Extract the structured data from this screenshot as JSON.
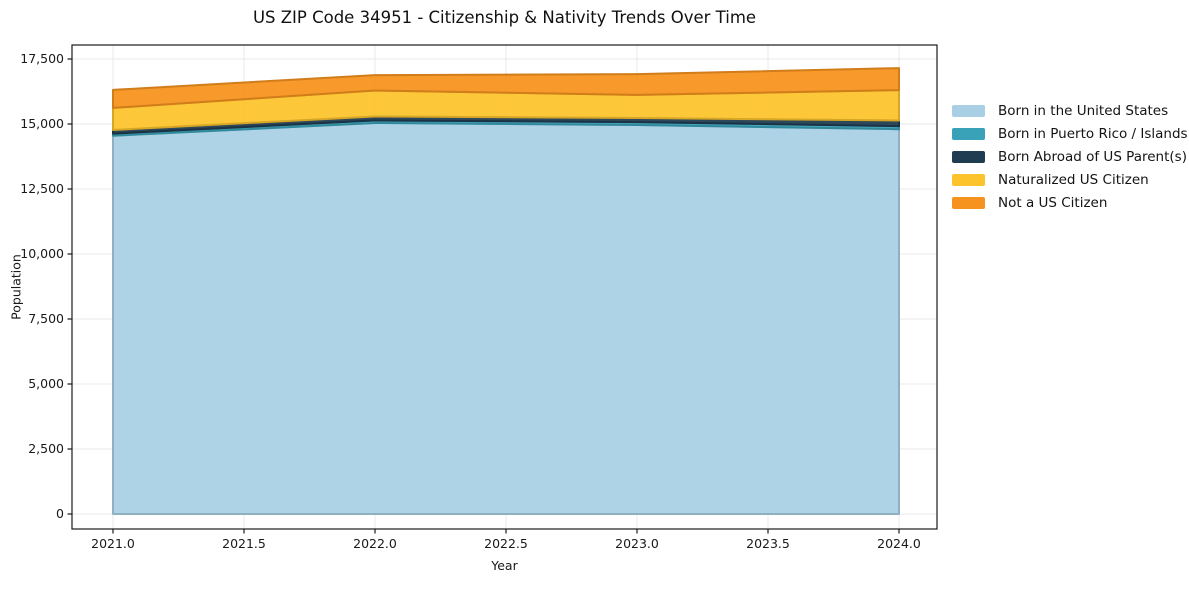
{
  "chart_data": {
    "type": "area",
    "stacked": true,
    "title": "US ZIP Code 34951 - Citizenship & Nativity Trends Over Time",
    "xlabel": "Year",
    "ylabel": "Population",
    "x": [
      2021,
      2022,
      2023,
      2024
    ],
    "series": [
      {
        "name": "Born in the United States",
        "color": "#a9cfe4",
        "values": [
          14550,
          15040,
          14960,
          14800
        ]
      },
      {
        "name": "Born in Puerto Rico / Islands",
        "color": "#3aa2b8",
        "values": [
          80,
          100,
          115,
          120
        ]
      },
      {
        "name": "Born Abroad of US Parent(s)",
        "color": "#203c51",
        "values": [
          140,
          150,
          155,
          215
        ]
      },
      {
        "name": "Naturalized US Citizen",
        "color": "#fcc32d",
        "values": [
          850,
          1000,
          890,
          1170
        ]
      },
      {
        "name": "Not a US Citizen",
        "color": "#f6931e",
        "values": [
          690,
          590,
          800,
          845
        ]
      }
    ],
    "x_tick_values": [
      2021.0,
      2021.5,
      2022.0,
      2022.5,
      2023.0,
      2023.5,
      2024.0
    ],
    "x_tick_labels": [
      "2021.0",
      "2021.5",
      "2022.0",
      "2022.5",
      "2023.0",
      "2023.5",
      "2024.0"
    ],
    "y_tick_values": [
      0,
      2500,
      5000,
      7500,
      10000,
      12500,
      15000,
      17500
    ],
    "y_tick_labels": [
      "0",
      "2,500",
      "5,000",
      "7,500",
      "10,000",
      "12,500",
      "15,000",
      "17,500"
    ],
    "ylim": [
      -580,
      18040
    ],
    "xlim": [
      2020.84,
      2024.15
    ],
    "grid": true,
    "legend_position": "right"
  },
  "colors": {
    "background": "#ffffff",
    "grid": "#e8e8e8",
    "spine": "#1a1a1a",
    "tick_text": "#1a1a1a"
  }
}
